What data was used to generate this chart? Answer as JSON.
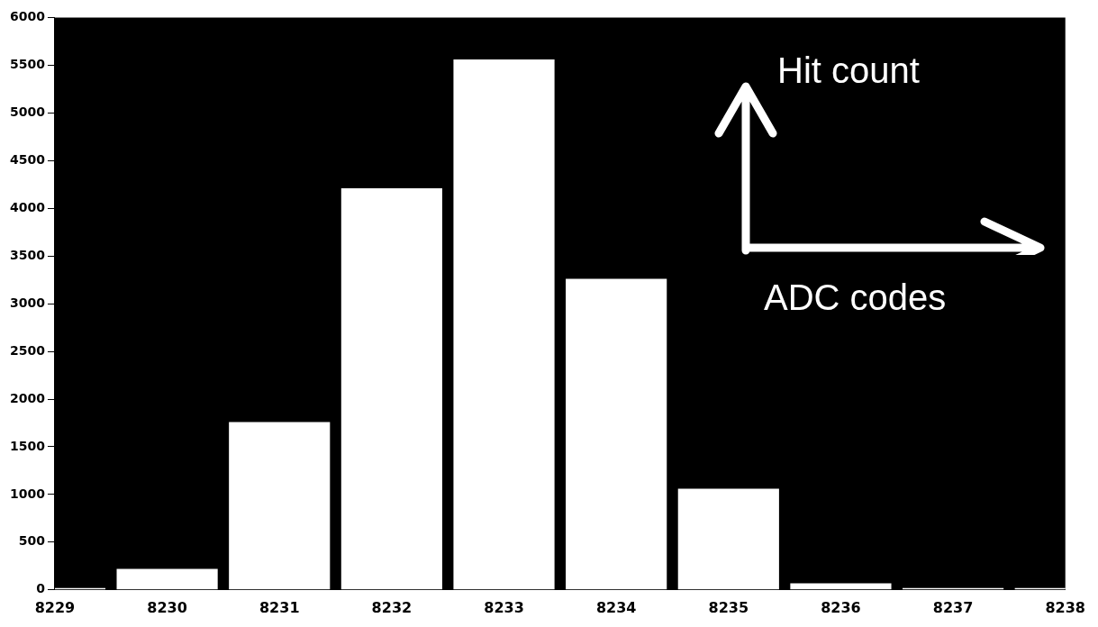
{
  "chart_data": {
    "type": "bar",
    "x": [
      8229,
      8230,
      8231,
      8232,
      8233,
      8234,
      8235,
      8236,
      8237,
      8238
    ],
    "values": [
      20,
      220,
      1760,
      4210,
      5560,
      3260,
      1060,
      70,
      20,
      20
    ],
    "color": "#ffffff",
    "xlim": [
      8229,
      8238
    ],
    "xticks": [
      8229,
      8230,
      8231,
      8232,
      8233,
      8234,
      8235,
      8236,
      8237,
      8238
    ],
    "ylim": [
      0,
      6000
    ],
    "yticks": [
      0,
      500,
      1000,
      1500,
      2000,
      2500,
      3000,
      3500,
      4000,
      4500,
      5000,
      5500,
      6000
    ],
    "annotations": [
      "Hit count",
      "ADC codes"
    ],
    "grid": false,
    "legend": false
  }
}
